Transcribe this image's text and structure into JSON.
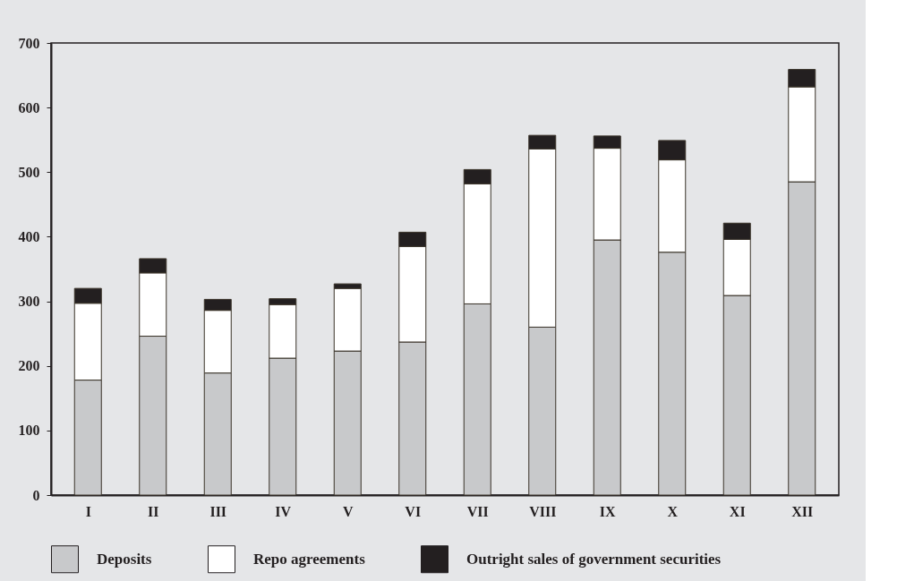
{
  "chart_data": {
    "type": "bar",
    "stacked": true,
    "categories": [
      "I",
      "II",
      "III",
      "IV",
      "V",
      "VI",
      "VII",
      "VIII",
      "IX",
      "X",
      "XI",
      "XII"
    ],
    "series": [
      {
        "name": "Deposits",
        "color": "#c8c9cb",
        "values": [
          178,
          246,
          189,
          212,
          223,
          237,
          296,
          260,
          395,
          376,
          309,
          485
        ]
      },
      {
        "name": "Repo agreements",
        "color": "#ffffff",
        "values": [
          119,
          98,
          97,
          83,
          97,
          148,
          186,
          276,
          142,
          143,
          87,
          147
        ]
      },
      {
        "name": "Outright sales of government securities",
        "color": "#231f20",
        "values": [
          23,
          22,
          17,
          9,
          7,
          22,
          22,
          21,
          19,
          30,
          25,
          27
        ]
      }
    ],
    "ylim": [
      0,
      700
    ],
    "yticks": [
      0,
      100,
      200,
      300,
      400,
      500,
      600,
      700
    ],
    "grid": false,
    "legend": "bottom"
  }
}
